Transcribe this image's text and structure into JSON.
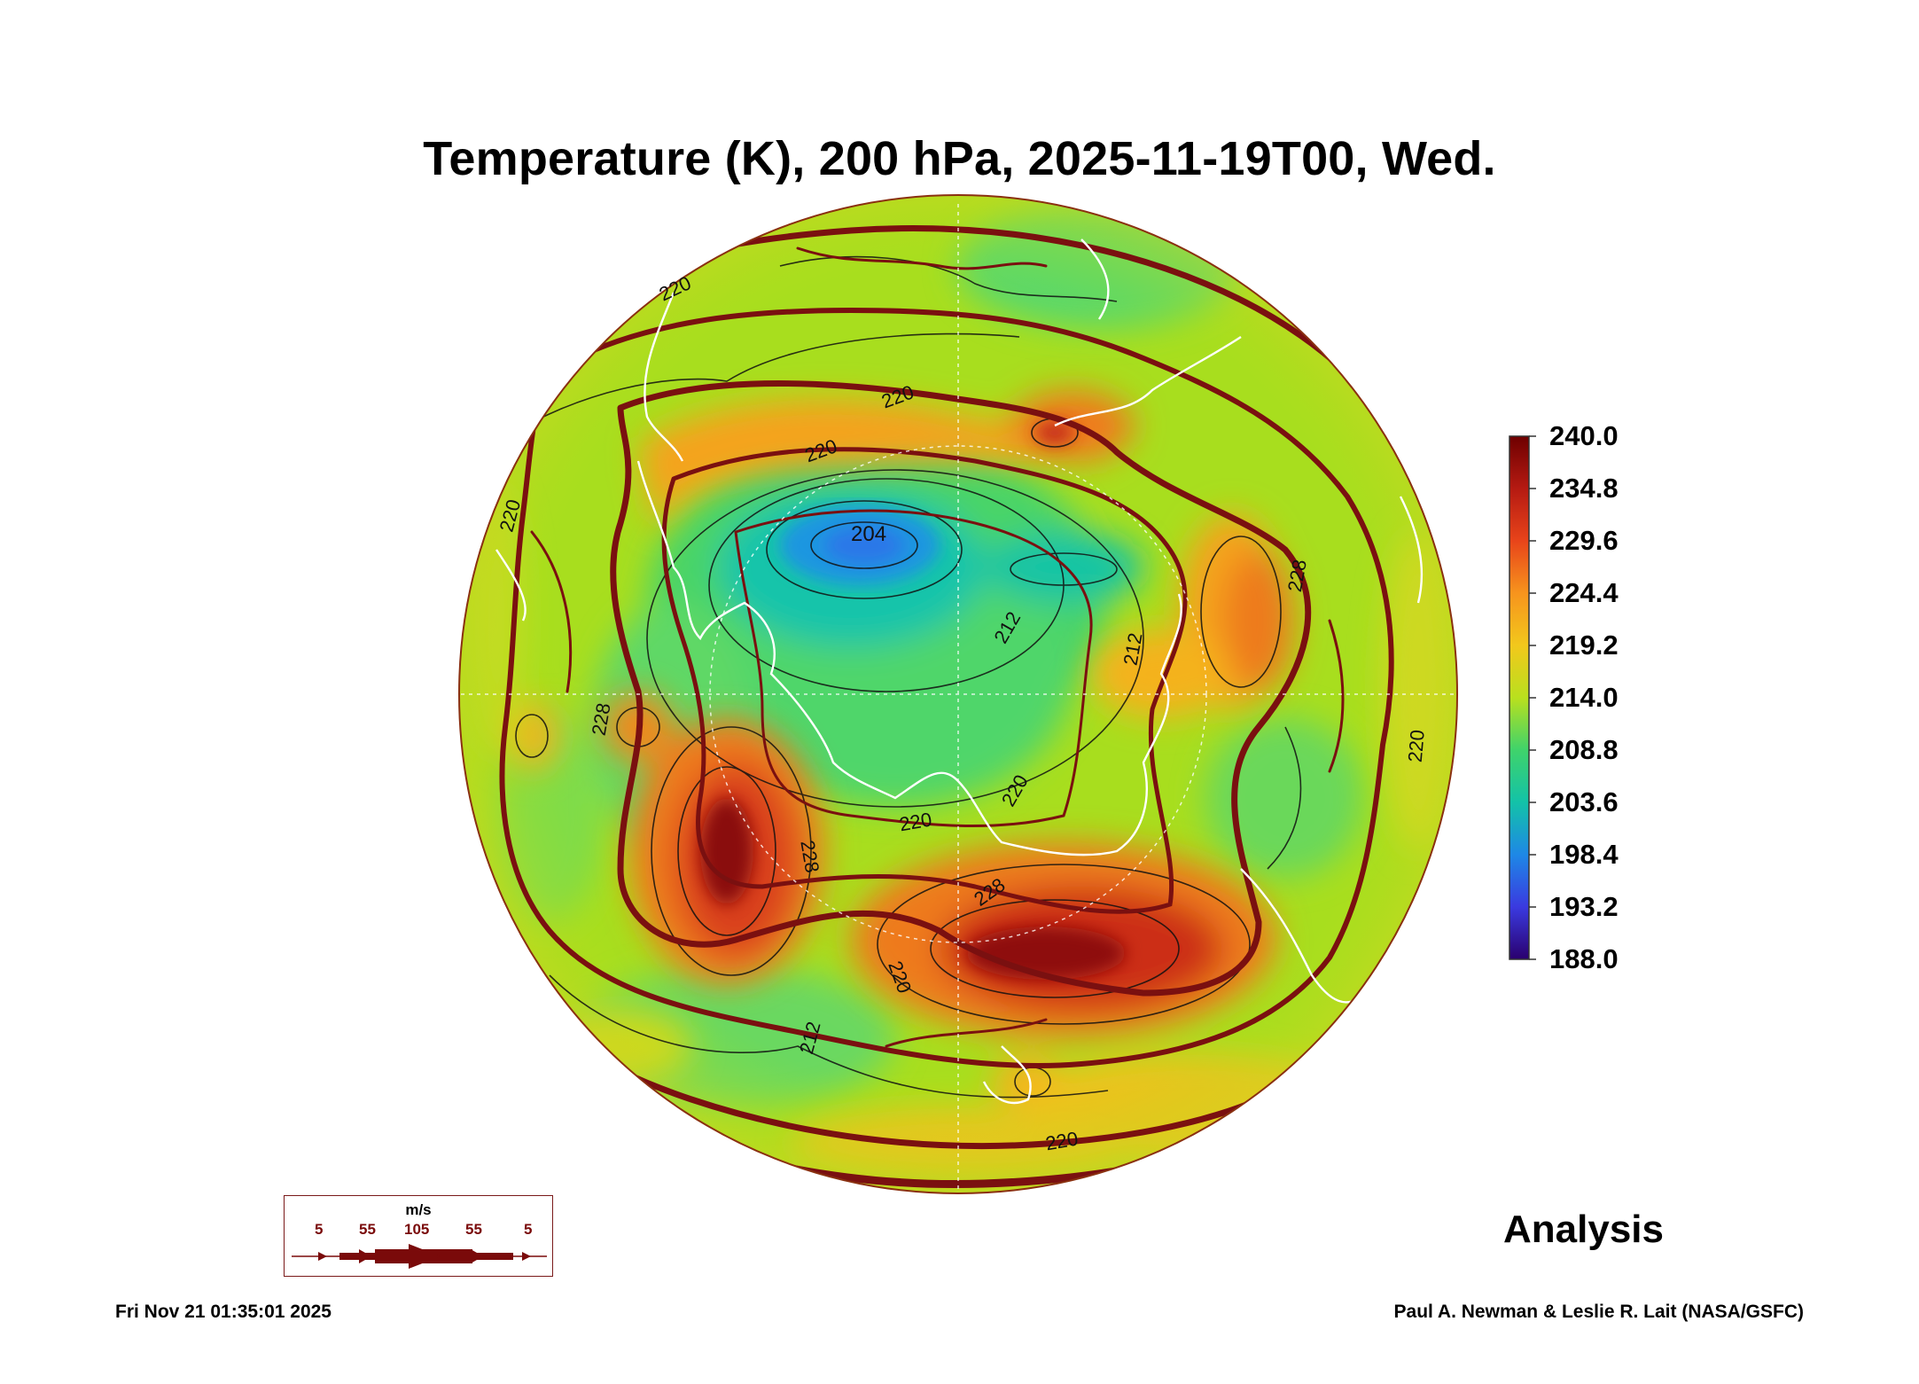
{
  "title": "Temperature (K), 200 hPa, 2025-11-19T00, Wed.",
  "colorbar": {
    "labels": [
      "240.0",
      "234.8",
      "229.6",
      "224.4",
      "219.2",
      "214.0",
      "208.8",
      "203.6",
      "198.4",
      "193.2",
      "188.0"
    ],
    "colors": [
      "#6e0000",
      "#b51a12",
      "#e8441a",
      "#f7941d",
      "#f2c81c",
      "#b9e01e",
      "#3fd36b",
      "#13c2a8",
      "#1e88e6",
      "#3a3ae0",
      "#2a006e"
    ]
  },
  "contour_labels": [
    "204",
    "212",
    "212",
    "212",
    "220",
    "220",
    "220",
    "220",
    "220",
    "220",
    "220",
    "228",
    "228",
    "228",
    "228",
    "220",
    "220"
  ],
  "wind_legend": {
    "unit": "m/s",
    "speeds": [
      "5",
      "55",
      "105",
      "55",
      "5"
    ]
  },
  "label": "Analysis",
  "timestamp": "Fri Nov 21 01:35:01 2025",
  "credit": "Paul A. Newman & Leslie R. Lait (NASA/GSFC)"
}
